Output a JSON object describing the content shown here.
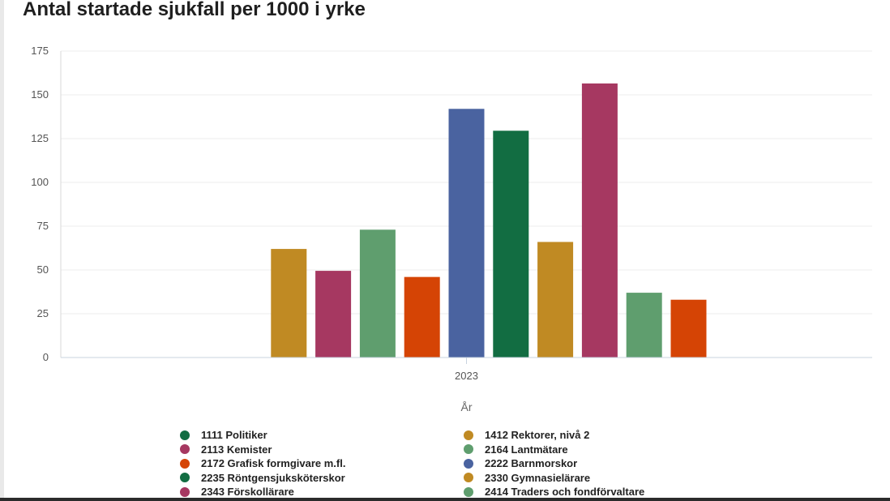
{
  "page": {
    "title": "Antal startade sjukfall per 1000 i yrke"
  },
  "chart_data": {
    "type": "bar",
    "title": "Antal startade sjukfall per 1000 i yrke",
    "xlabel": "År",
    "ylabel": "",
    "categories": [
      "2023"
    ],
    "ylim": [
      0,
      175
    ],
    "yticks": [
      0,
      25,
      50,
      75,
      100,
      125,
      150,
      175
    ],
    "grid": true,
    "legend_position": "bottom",
    "series": [
      {
        "name": "1111 Politiker",
        "color": "#126d42",
        "values": [
          null
        ]
      },
      {
        "name": "1412 Rektorer, nivå 2",
        "color": "#c08a23",
        "values": [
          62
        ]
      },
      {
        "name": "2113 Kemister",
        "color": "#a63861",
        "values": [
          49.5
        ]
      },
      {
        "name": "2164 Lantmätare",
        "color": "#5f9e6e",
        "values": [
          73
        ]
      },
      {
        "name": "2172 Grafisk formgivare m.fl.",
        "color": "#d54405",
        "values": [
          46
        ]
      },
      {
        "name": "2222 Barnmorskor",
        "color": "#4a63a0",
        "values": [
          142
        ]
      },
      {
        "name": "2235 Röntgensjuksköterskor",
        "color": "#126d42",
        "values": [
          129.5
        ]
      },
      {
        "name": "2330 Gymnasielärare",
        "color": "#c08a23",
        "values": [
          66
        ]
      },
      {
        "name": "2343 Förskollärare",
        "color": "#a63861",
        "values": [
          156.5
        ]
      },
      {
        "name": "2414 Traders och fondförvaltare",
        "color": "#5f9e6e",
        "values": [
          37
        ]
      },
      {
        "name": "",
        "color": "#d54405",
        "values": [
          33
        ]
      }
    ]
  }
}
